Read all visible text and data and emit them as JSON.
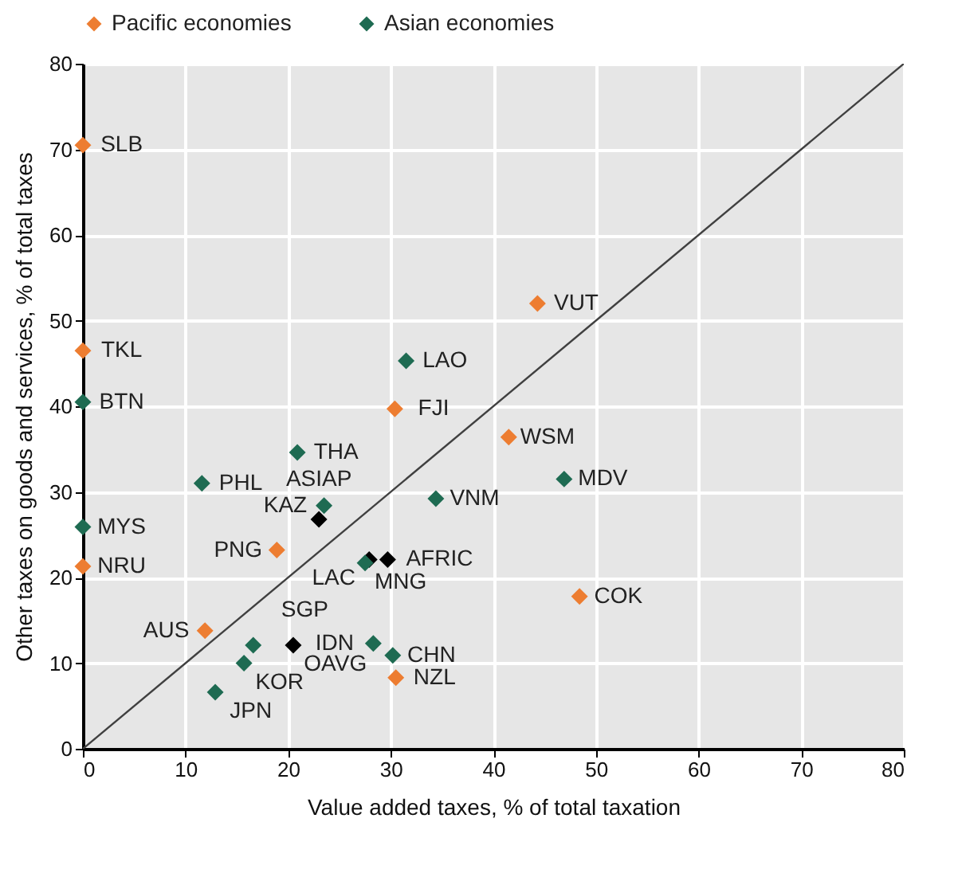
{
  "chart_data": {
    "type": "scatter",
    "xlabel": "Value added taxes, % of total taxation",
    "ylabel": "Other taxes on goods and services, % of total taxes",
    "xlim": [
      0,
      80
    ],
    "ylim": [
      0,
      80
    ],
    "xticks": [
      0,
      10,
      20,
      30,
      40,
      50,
      60,
      70,
      80
    ],
    "yticks": [
      0,
      10,
      20,
      30,
      40,
      50,
      60,
      70,
      80
    ],
    "grid": true,
    "legend": "top",
    "marker": "diamond",
    "series": [
      {
        "type": "line",
        "marker": "none",
        "color": "#404040",
        "x": [
          0,
          80
        ],
        "values": [
          0,
          80
        ]
      },
      {
        "color": "#000000",
        "x": [
          23.0,
          27.9,
          29.7,
          20.5
        ],
        "values": [
          26.8,
          22.1,
          22.1,
          12.1
        ]
      },
      {
        "name": "Pacific economies",
        "color": "#ed7d31",
        "x": [
          0,
          0,
          44.3,
          30.4,
          41.5,
          48.4,
          18.9,
          0,
          11.9,
          30.5
        ],
        "values": [
          70.5,
          46.5,
          52.0,
          39.7,
          36.4,
          17.8,
          23.2,
          21.3,
          13.8,
          8.3
        ]
      },
      {
        "name": "Asian economies",
        "color": "#1e6b52",
        "x": [
          0,
          0,
          31.5,
          20.9,
          11.6,
          23.5,
          34.4,
          46.9,
          27.5,
          28.3,
          30.2,
          16.6,
          15.7,
          12.9
        ],
        "values": [
          40.5,
          25.9,
          45.3,
          34.6,
          31.0,
          28.4,
          29.2,
          31.5,
          21.7,
          12.3,
          10.9,
          12.1,
          10.0,
          6.6
        ]
      }
    ],
    "annotations": [
      {
        "text": "SLB",
        "x": 0,
        "y": 70.5
      },
      {
        "text": "TKL",
        "x": 0,
        "y": 46.5
      },
      {
        "text": "VUT",
        "x": 44.3,
        "y": 52.0
      },
      {
        "text": "FJI",
        "x": 30.4,
        "y": 39.7
      },
      {
        "text": "WSM",
        "x": 41.5,
        "y": 36.4
      },
      {
        "text": "COK",
        "x": 48.4,
        "y": 17.8
      },
      {
        "text": "PNG",
        "x": 18.9,
        "y": 23.2
      },
      {
        "text": "NRU",
        "x": 0,
        "y": 21.3
      },
      {
        "text": "AUS",
        "x": 11.9,
        "y": 13.8
      },
      {
        "text": "NZL",
        "x": 30.5,
        "y": 8.3
      },
      {
        "text": "BTN",
        "x": 0,
        "y": 40.5
      },
      {
        "text": "MYS",
        "x": 0,
        "y": 25.9
      },
      {
        "text": "LAO",
        "x": 31.5,
        "y": 45.3
      },
      {
        "text": "THA",
        "x": 20.9,
        "y": 34.6
      },
      {
        "text": "PHL",
        "x": 11.6,
        "y": 31.0
      },
      {
        "text": "KAZ",
        "x": 23.5,
        "y": 28.4
      },
      {
        "text": "VNM",
        "x": 34.4,
        "y": 29.2
      },
      {
        "text": "MDV",
        "x": 46.9,
        "y": 31.5
      },
      {
        "text": "MNG",
        "x": 27.5,
        "y": 21.7
      },
      {
        "text": "IDN",
        "x": 28.3,
        "y": 12.3
      },
      {
        "text": "CHN",
        "x": 30.2,
        "y": 10.9
      },
      {
        "text": "SGP",
        "x": 16.6,
        "y": 12.1
      },
      {
        "text": "KOR",
        "x": 15.7,
        "y": 10.0
      },
      {
        "text": "JPN",
        "x": 12.9,
        "y": 6.6
      },
      {
        "text": "ASIAP",
        "x": 23.0,
        "y": 26.8
      },
      {
        "text": "LAC",
        "x": 27.9,
        "y": 22.1
      },
      {
        "text": "AFRIC",
        "x": 29.7,
        "y": 22.1
      },
      {
        "text": "OAVG",
        "x": 20.5,
        "y": 12.1
      }
    ]
  }
}
